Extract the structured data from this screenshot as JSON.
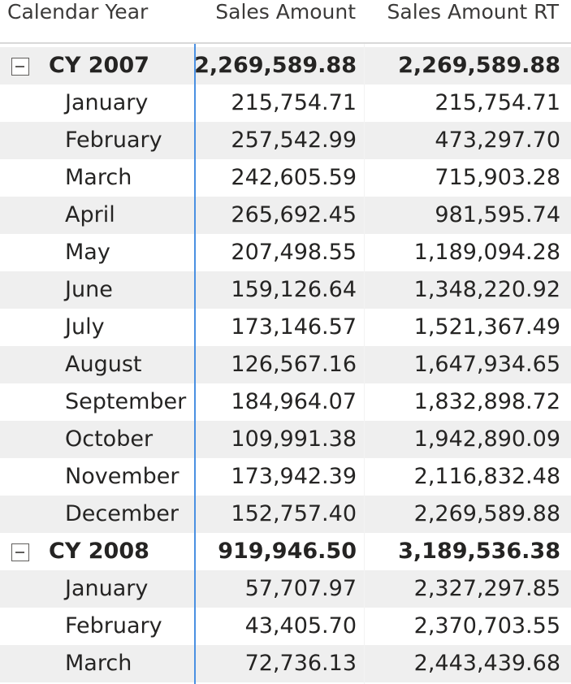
{
  "headers": {
    "calendar_year": "Calendar Year",
    "sales_amount": "Sales Amount",
    "sales_amount_rt": "Sales Amount RT"
  },
  "groups": [
    {
      "label": "CY 2007",
      "sales_amount": "2,269,589.88",
      "sales_amount_rt": "2,269,589.88",
      "expanded": true,
      "months": [
        {
          "label": "January",
          "sales_amount": "215,754.71",
          "sales_amount_rt": "215,754.71"
        },
        {
          "label": "February",
          "sales_amount": "257,542.99",
          "sales_amount_rt": "473,297.70"
        },
        {
          "label": "March",
          "sales_amount": "242,605.59",
          "sales_amount_rt": "715,903.28"
        },
        {
          "label": "April",
          "sales_amount": "265,692.45",
          "sales_amount_rt": "981,595.74"
        },
        {
          "label": "May",
          "sales_amount": "207,498.55",
          "sales_amount_rt": "1,189,094.28"
        },
        {
          "label": "June",
          "sales_amount": "159,126.64",
          "sales_amount_rt": "1,348,220.92"
        },
        {
          "label": "July",
          "sales_amount": "173,146.57",
          "sales_amount_rt": "1,521,367.49"
        },
        {
          "label": "August",
          "sales_amount": "126,567.16",
          "sales_amount_rt": "1,647,934.65"
        },
        {
          "label": "September",
          "sales_amount": "184,964.07",
          "sales_amount_rt": "1,832,898.72"
        },
        {
          "label": "October",
          "sales_amount": "109,991.38",
          "sales_amount_rt": "1,942,890.09"
        },
        {
          "label": "November",
          "sales_amount": "173,942.39",
          "sales_amount_rt": "2,116,832.48"
        },
        {
          "label": "December",
          "sales_amount": "152,757.40",
          "sales_amount_rt": "2,269,589.88"
        }
      ]
    },
    {
      "label": "CY 2008",
      "sales_amount": "919,946.50",
      "sales_amount_rt": "3,189,536.38",
      "expanded": true,
      "months": [
        {
          "label": "January",
          "sales_amount": "57,707.97",
          "sales_amount_rt": "2,327,297.85"
        },
        {
          "label": "February",
          "sales_amount": "43,405.70",
          "sales_amount_rt": "2,370,703.55"
        },
        {
          "label": "March",
          "sales_amount": "72,736.13",
          "sales_amount_rt": "2,443,439.68"
        }
      ]
    }
  ],
  "colors": {
    "band": "#efefef",
    "divider": "#4a90e2",
    "text": "#252423"
  }
}
